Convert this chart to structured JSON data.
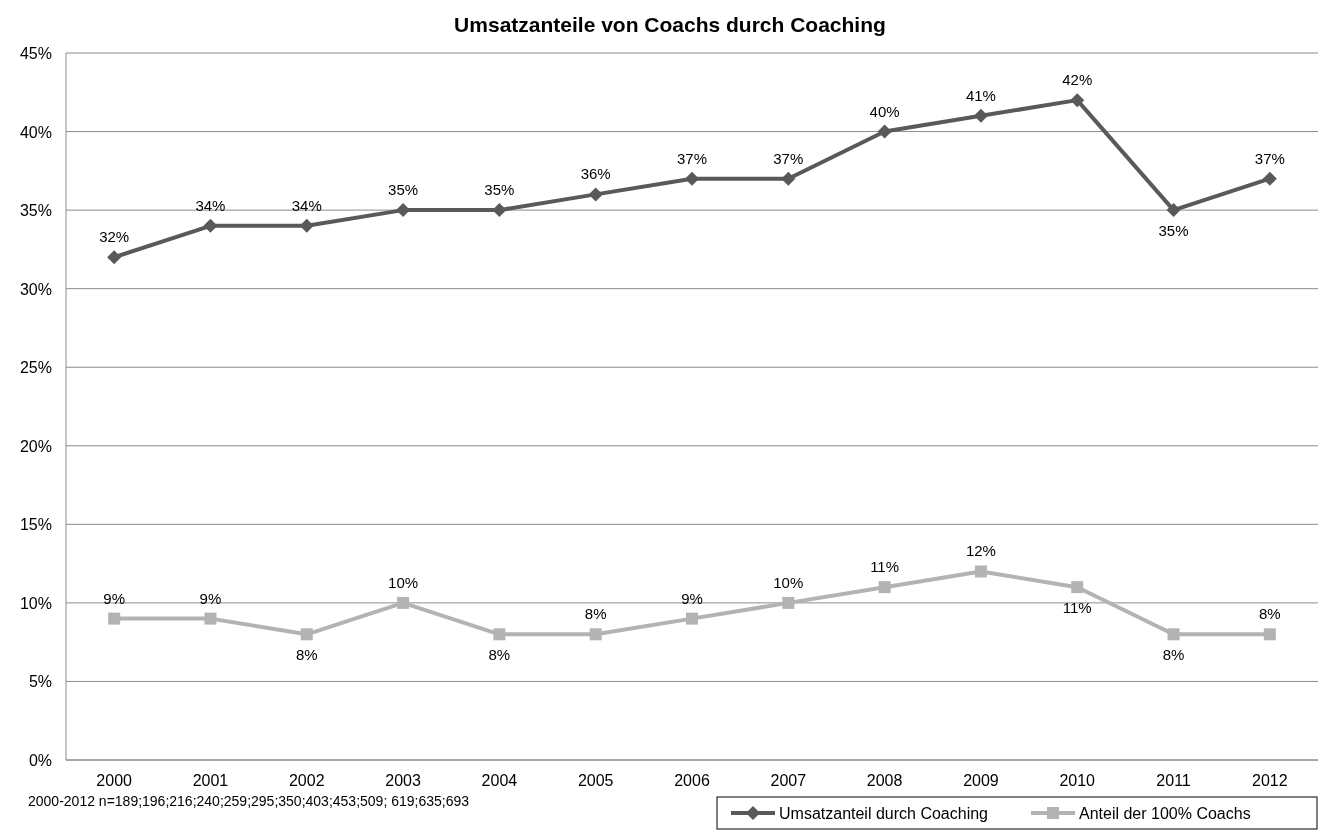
{
  "chart_data": {
    "type": "line",
    "title": "Umsatzanteile von Coachs durch Coaching",
    "categories": [
      "2000",
      "2001",
      "2002",
      "2003",
      "2004",
      "2005",
      "2006",
      "2007",
      "2008",
      "2009",
      "2010",
      "2011",
      "2012"
    ],
    "series": [
      {
        "name": "Umsatzanteil durch Coaching",
        "color": "#595959",
        "marker": "diamond",
        "values": [
          32,
          34,
          34,
          35,
          35,
          36,
          37,
          37,
          40,
          41,
          42,
          35,
          37
        ],
        "value_labels": [
          "32%",
          "34%",
          "34%",
          "35%",
          "35%",
          "36%",
          "37%",
          "37%",
          "40%",
          "41%",
          "42%",
          "35%",
          "37%"
        ]
      },
      {
        "name": "Anteil der 100% Coachs",
        "color": "#b3b3b3",
        "marker": "square",
        "values": [
          9,
          9,
          8,
          10,
          8,
          8,
          9,
          10,
          11,
          12,
          11,
          8,
          8
        ],
        "value_labels": [
          "9%",
          "9%",
          "8%",
          "10%",
          "8%",
          "8%",
          "9%",
          "10%",
          "11%",
          "12%",
          "11%",
          "8%",
          "8%"
        ]
      }
    ],
    "ylim": [
      0,
      45
    ],
    "yticks": [
      {
        "value": 0,
        "label": "0%"
      },
      {
        "value": 5,
        "label": "5%"
      },
      {
        "value": 10,
        "label": "10%"
      },
      {
        "value": 15,
        "label": "15%"
      },
      {
        "value": 20,
        "label": "20%"
      },
      {
        "value": 25,
        "label": "25%"
      },
      {
        "value": 30,
        "label": "30%"
      },
      {
        "value": 35,
        "label": "35%"
      },
      {
        "value": 40,
        "label": "40%"
      },
      {
        "value": 45,
        "label": "45%"
      }
    ],
    "grid": "y",
    "legend": "bottom right",
    "line_style": "solid",
    "annotations": [
      "2000-2012 n=189;196;216;240;259;295;350;403;453;509; 619;635;693"
    ]
  }
}
